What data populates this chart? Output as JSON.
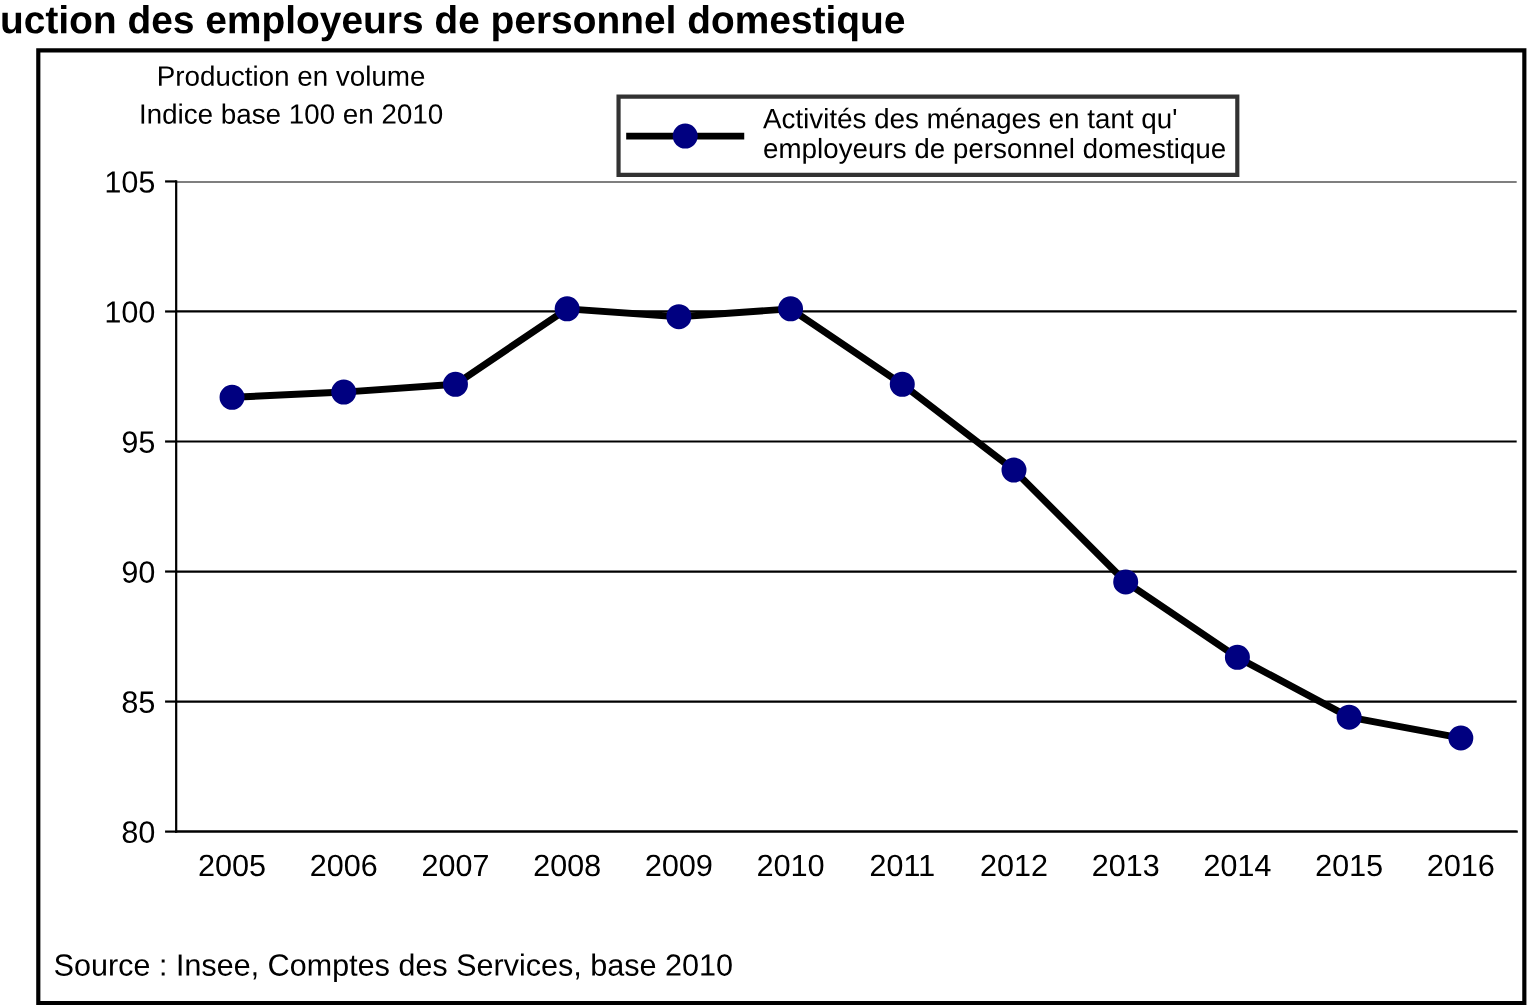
{
  "chart_data": {
    "type": "line",
    "title": "uction des employeurs de personnel domestique",
    "ylabel": "Production en volume\nIndice base 100 en 2010",
    "categories": [
      "2005",
      "2006",
      "2007",
      "2008",
      "2009",
      "2010",
      "2011",
      "2012",
      "2013",
      "2014",
      "2015",
      "2016"
    ],
    "series": [
      {
        "name": "Activités des ménages en tant qu'\nemployeurs de personnel domestique",
        "color": "#000080",
        "values": [
          96.7,
          96.9,
          97.2,
          100.1,
          99.8,
          100.1,
          97.2,
          93.9,
          89.6,
          86.7,
          84.4,
          83.6
        ]
      }
    ],
    "ylim": [
      80,
      105
    ],
    "yticks": [
      80,
      85,
      90,
      95,
      100,
      105
    ],
    "grid": "y",
    "legend": "top right",
    "marker": "circle",
    "line_style": "solid",
    "annotations": [
      "Source : Insee, Comptes des Services, base 2010"
    ]
  }
}
